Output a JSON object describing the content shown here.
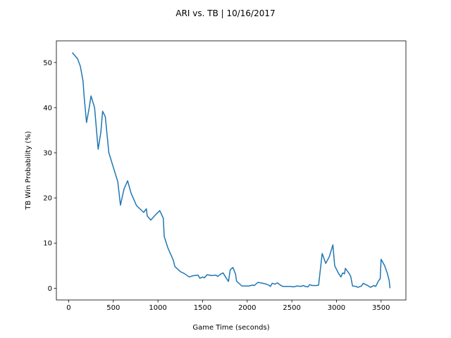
{
  "chart_data": {
    "type": "line",
    "title": "ARI vs. TB | 10/16/2017",
    "x_label": "Game Time (seconds)",
    "y_label": "TB Win Probability (%)",
    "xlim": [
      -138,
      3778
    ],
    "ylim": [
      -2.6,
      54.8
    ],
    "xticks": [
      0,
      500,
      1000,
      1500,
      2000,
      2500,
      3000,
      3500
    ],
    "yticks": [
      0,
      10,
      20,
      30,
      40,
      50
    ],
    "grid": false,
    "series": [
      {
        "color": "#1f77b4",
        "x": [
          40,
          100,
          130,
          160,
          175,
          200,
          230,
          250,
          290,
          330,
          360,
          380,
          410,
          450,
          550,
          580,
          620,
          660,
          700,
          760,
          840,
          870,
          880,
          920,
          960,
          1020,
          1060,
          1070,
          1110,
          1170,
          1190,
          1250,
          1300,
          1350,
          1400,
          1450,
          1470,
          1500,
          1520,
          1550,
          1600,
          1650,
          1670,
          1700,
          1730,
          1760,
          1790,
          1810,
          1840,
          1870,
          1880,
          1940,
          2020,
          2060,
          2080,
          2120,
          2200,
          2240,
          2260,
          2280,
          2310,
          2340,
          2370,
          2400,
          2480,
          2520,
          2560,
          2600,
          2630,
          2650,
          2680,
          2700,
          2730,
          2780,
          2800,
          2840,
          2880,
          2920,
          2960,
          2980,
          3020,
          3050,
          3070,
          3090,
          3100,
          3140,
          3160,
          3180,
          3220,
          3240,
          3280,
          3300,
          3350,
          3380,
          3420,
          3440,
          3470,
          3490,
          3500,
          3540,
          3570,
          3590,
          3600
        ],
        "values": [
          52.2,
          50.8,
          49.2,
          46,
          42,
          36.7,
          40,
          42.6,
          40,
          30.8,
          34.5,
          39.2,
          38,
          30,
          23.6,
          18.4,
          22,
          23.8,
          21,
          18.3,
          16.8,
          17.6,
          16,
          15.1,
          16,
          17.2,
          15.5,
          11.5,
          9,
          6.3,
          4.8,
          3.7,
          3.2,
          2.5,
          2.8,
          2.9,
          2.2,
          2.5,
          2.3,
          3,
          2.8,
          2.9,
          2.6,
          3.1,
          3.4,
          2.4,
          1.5,
          4.1,
          4.6,
          3.1,
          1.6,
          0.5,
          0.5,
          0.7,
          0.6,
          1.3,
          1,
          0.7,
          0.4,
          1.1,
          0.9,
          1.2,
          0.7,
          0.4,
          0.4,
          0.3,
          0.5,
          0.4,
          0.6,
          0.4,
          0.3,
          0.8,
          0.6,
          0.6,
          0.7,
          7.7,
          5.5,
          7,
          9.6,
          5,
          3.4,
          2.5,
          3.4,
          3.2,
          4.4,
          3.3,
          2.6,
          0.5,
          0.4,
          0.2,
          0.5,
          1.1,
          0.6,
          0.2,
          0.6,
          0.4,
          1.6,
          2.1,
          6.4,
          5,
          3.3,
          1.8,
          0
        ]
      }
    ]
  }
}
